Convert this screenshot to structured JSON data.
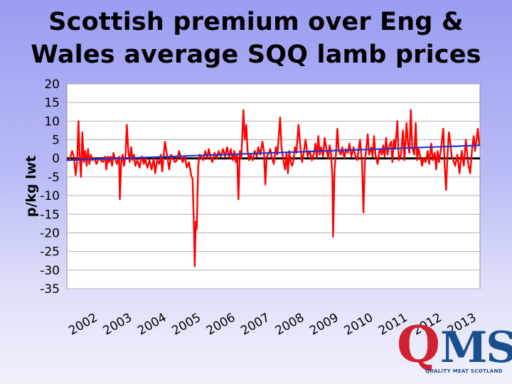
{
  "title_line1": "Scottish premium over Eng &",
  "title_line2": "Wales average SQQ lamb prices",
  "logo": {
    "mark_q": "Q",
    "mark_ms": "MS",
    "tagline": "QUALITY MEAT SCOTLAND"
  },
  "colors": {
    "series": "#ff0000",
    "trend": "#2233cc",
    "zero_line": "#000000",
    "grid": "#b0b0b0",
    "plot_bg": "#ffffff"
  },
  "chart_data": {
    "type": "line",
    "ylabel": "p/kg lwt",
    "ylim": [
      -35,
      20
    ],
    "yticks": [
      20,
      15,
      10,
      5,
      0,
      -5,
      -10,
      -15,
      -20,
      -25,
      -30,
      -35
    ],
    "xlim": [
      2002.0,
      2013.7
    ],
    "xticks": [
      "2002",
      "2003",
      "2004",
      "2005",
      "2006",
      "2007",
      "2008",
      "2009",
      "2010",
      "2011",
      "2012",
      "2013"
    ],
    "grid": true,
    "series": [
      {
        "type": "line",
        "points": [
          [
            2002.0,
            -0.5
          ],
          [
            2002.08,
            -0.3
          ],
          [
            2002.15,
            2.0
          ],
          [
            2002.2,
            0.5
          ],
          [
            2002.25,
            -4.5
          ],
          [
            2002.29,
            -1.0
          ],
          [
            2002.33,
            10.0
          ],
          [
            2002.36,
            1.0
          ],
          [
            2002.4,
            -5.0
          ],
          [
            2002.44,
            7.0
          ],
          [
            2002.48,
            -1.0
          ],
          [
            2002.52,
            2.0
          ],
          [
            2002.56,
            -2.0
          ],
          [
            2002.6,
            2.5
          ],
          [
            2002.64,
            -1.5
          ],
          [
            2002.68,
            1.0
          ],
          [
            2002.72,
            -0.5
          ],
          [
            2002.78,
            0.0
          ],
          [
            2002.84,
            -1.5
          ],
          [
            2002.9,
            0.0
          ],
          [
            2002.96,
            -0.5
          ],
          [
            2003.02,
            -1.0
          ],
          [
            2003.08,
            0.5
          ],
          [
            2003.12,
            -3.0
          ],
          [
            2003.16,
            0.5
          ],
          [
            2003.2,
            -1.0
          ],
          [
            2003.24,
            0.5
          ],
          [
            2003.28,
            -2.0
          ],
          [
            2003.32,
            1.5
          ],
          [
            2003.36,
            0.0
          ],
          [
            2003.42,
            -1.5
          ],
          [
            2003.48,
            0.5
          ],
          [
            2003.5,
            -11.0
          ],
          [
            2003.54,
            -1.0
          ],
          [
            2003.58,
            1.0
          ],
          [
            2003.62,
            -2.0
          ],
          [
            2003.66,
            0.5
          ],
          [
            2003.7,
            9.0
          ],
          [
            2003.74,
            2.0
          ],
          [
            2003.78,
            -1.0
          ],
          [
            2003.82,
            3.0
          ],
          [
            2003.86,
            -0.5
          ],
          [
            2003.9,
            1.0
          ],
          [
            2003.94,
            -2.0
          ],
          [
            2004.0,
            -0.5
          ],
          [
            2004.06,
            -2.5
          ],
          [
            2004.12,
            0.5
          ],
          [
            2004.18,
            -1.5
          ],
          [
            2004.22,
            0.0
          ],
          [
            2004.28,
            -2.5
          ],
          [
            2004.34,
            -0.5
          ],
          [
            2004.4,
            -3.0
          ],
          [
            2004.46,
            0.0
          ],
          [
            2004.5,
            -4.0
          ],
          [
            2004.56,
            -0.5
          ],
          [
            2004.62,
            -1.5
          ],
          [
            2004.66,
            1.0
          ],
          [
            2004.7,
            -3.5
          ],
          [
            2004.74,
            0.5
          ],
          [
            2004.78,
            4.5
          ],
          [
            2004.82,
            2.0
          ],
          [
            2004.86,
            -0.5
          ],
          [
            2004.9,
            -3.0
          ],
          [
            2004.95,
            1.0
          ],
          [
            2005.0,
            0.0
          ],
          [
            2005.06,
            -1.0
          ],
          [
            2005.12,
            -0.5
          ],
          [
            2005.18,
            2.0
          ],
          [
            2005.22,
            0.5
          ],
          [
            2005.28,
            -1.0
          ],
          [
            2005.34,
            0.5
          ],
          [
            2005.4,
            -2.5
          ],
          [
            2005.46,
            -1.0
          ],
          [
            2005.52,
            -4.5
          ],
          [
            2005.56,
            -5.5
          ],
          [
            2005.6,
            -19.0
          ],
          [
            2005.62,
            -29.0
          ],
          [
            2005.65,
            -17.0
          ],
          [
            2005.68,
            -19.0
          ],
          [
            2005.72,
            -2.0
          ],
          [
            2005.76,
            1.0
          ],
          [
            2005.8,
            0.5
          ],
          [
            2005.86,
            -0.5
          ],
          [
            2005.92,
            2.0
          ],
          [
            2005.98,
            0.0
          ],
          [
            2006.02,
            2.5
          ],
          [
            2006.08,
            0.0
          ],
          [
            2006.12,
            -1.0
          ],
          [
            2006.18,
            1.5
          ],
          [
            2006.24,
            0.0
          ],
          [
            2006.3,
            2.0
          ],
          [
            2006.36,
            0.5
          ],
          [
            2006.42,
            2.5
          ],
          [
            2006.48,
            0.5
          ],
          [
            2006.54,
            3.0
          ],
          [
            2006.6,
            0.0
          ],
          [
            2006.64,
            2.5
          ],
          [
            2006.7,
            -0.5
          ],
          [
            2006.74,
            2.0
          ],
          [
            2006.78,
            -1.0
          ],
          [
            2006.82,
            1.0
          ],
          [
            2006.86,
            -11.0
          ],
          [
            2006.9,
            2.0
          ],
          [
            2006.94,
            0.0
          ],
          [
            2007.0,
            13.0
          ],
          [
            2007.04,
            5.0
          ],
          [
            2007.08,
            9.0
          ],
          [
            2007.12,
            2.0
          ],
          [
            2007.16,
            -0.5
          ],
          [
            2007.2,
            1.0
          ],
          [
            2007.26,
            -0.5
          ],
          [
            2007.32,
            2.0
          ],
          [
            2007.38,
            0.5
          ],
          [
            2007.42,
            3.0
          ],
          [
            2007.48,
            1.0
          ],
          [
            2007.54,
            4.5
          ],
          [
            2007.58,
            2.0
          ],
          [
            2007.62,
            -7.0
          ],
          [
            2007.66,
            0.5
          ],
          [
            2007.7,
            1.0
          ],
          [
            2007.76,
            2.5
          ],
          [
            2007.8,
            0.5
          ],
          [
            2007.86,
            -1.5
          ],
          [
            2007.92,
            3.0
          ],
          [
            2007.96,
            1.0
          ],
          [
            2008.0,
            5.5
          ],
          [
            2008.04,
            11.0
          ],
          [
            2008.08,
            3.0
          ],
          [
            2008.12,
            0.0
          ],
          [
            2008.18,
            -3.0
          ],
          [
            2008.22,
            1.5
          ],
          [
            2008.26,
            -4.0
          ],
          [
            2008.3,
            2.0
          ],
          [
            2008.34,
            -1.0
          ],
          [
            2008.38,
            -2.0
          ],
          [
            2008.42,
            -0.5
          ],
          [
            2008.46,
            3.0
          ],
          [
            2008.5,
            1.5
          ],
          [
            2008.56,
            9.0
          ],
          [
            2008.62,
            2.5
          ],
          [
            2008.66,
            -1.0
          ],
          [
            2008.7,
            1.0
          ],
          [
            2008.76,
            5.0
          ],
          [
            2008.82,
            0.5
          ],
          [
            2008.88,
            2.0
          ],
          [
            2008.94,
            -0.5
          ],
          [
            2009.0,
            1.5
          ],
          [
            2009.04,
            4.0
          ],
          [
            2009.08,
            0.0
          ],
          [
            2009.12,
            6.0
          ],
          [
            2009.16,
            1.0
          ],
          [
            2009.2,
            3.0
          ],
          [
            2009.26,
            0.5
          ],
          [
            2009.3,
            5.5
          ],
          [
            2009.36,
            2.0
          ],
          [
            2009.4,
            0.0
          ],
          [
            2009.44,
            3.5
          ],
          [
            2009.48,
            1.5
          ],
          [
            2009.52,
            -5.0
          ],
          [
            2009.54,
            -21.0
          ],
          [
            2009.58,
            -3.0
          ],
          [
            2009.62,
            1.0
          ],
          [
            2009.66,
            8.0
          ],
          [
            2009.7,
            2.0
          ],
          [
            2009.76,
            1.0
          ],
          [
            2009.8,
            3.0
          ],
          [
            2009.86,
            0.0
          ],
          [
            2009.9,
            2.5
          ],
          [
            2009.96,
            1.5
          ],
          [
            2010.0,
            4.0
          ],
          [
            2010.06,
            0.5
          ],
          [
            2010.12,
            3.0
          ],
          [
            2010.16,
            1.0
          ],
          [
            2010.22,
            -0.5
          ],
          [
            2010.3,
            5.0
          ],
          [
            2010.36,
            -1.0
          ],
          [
            2010.4,
            -14.5
          ],
          [
            2010.44,
            -1.0
          ],
          [
            2010.48,
            2.5
          ],
          [
            2010.52,
            6.5
          ],
          [
            2010.56,
            1.0
          ],
          [
            2010.62,
            3.0
          ],
          [
            2010.66,
            0.5
          ],
          [
            2010.7,
            6.0
          ],
          [
            2010.74,
            1.0
          ],
          [
            2010.8,
            -1.5
          ],
          [
            2010.86,
            2.5
          ],
          [
            2010.92,
            1.0
          ],
          [
            2010.96,
            3.5
          ],
          [
            2011.0,
            0.5
          ],
          [
            2011.04,
            5.5
          ],
          [
            2011.08,
            1.0
          ],
          [
            2011.12,
            3.0
          ],
          [
            2011.18,
            4.5
          ],
          [
            2011.22,
            -1.0
          ],
          [
            2011.26,
            5.0
          ],
          [
            2011.3,
            2.5
          ],
          [
            2011.36,
            10.0
          ],
          [
            2011.4,
            -0.5
          ],
          [
            2011.46,
            1.0
          ],
          [
            2011.52,
            7.5
          ],
          [
            2011.56,
            -0.5
          ],
          [
            2011.62,
            9.5
          ],
          [
            2011.66,
            4.0
          ],
          [
            2011.7,
            1.5
          ],
          [
            2011.74,
            13.0
          ],
          [
            2011.78,
            3.0
          ],
          [
            2011.84,
            1.0
          ],
          [
            2011.88,
            9.5
          ],
          [
            2011.92,
            -0.5
          ],
          [
            2011.96,
            2.5
          ],
          [
            2012.0,
            1.0
          ],
          [
            2012.06,
            -2.0
          ],
          [
            2012.1,
            0.0
          ],
          [
            2012.16,
            -1.0
          ],
          [
            2012.22,
            2.0
          ],
          [
            2012.26,
            -1.5
          ],
          [
            2012.32,
            4.0
          ],
          [
            2012.36,
            -0.5
          ],
          [
            2012.42,
            1.5
          ],
          [
            2012.46,
            -3.0
          ],
          [
            2012.5,
            2.0
          ],
          [
            2012.54,
            -1.0
          ],
          [
            2012.6,
            3.0
          ],
          [
            2012.66,
            8.0
          ],
          [
            2012.7,
            -2.0
          ],
          [
            2012.74,
            -8.5
          ],
          [
            2012.78,
            1.0
          ],
          [
            2012.82,
            7.0
          ],
          [
            2012.86,
            4.0
          ],
          [
            2012.9,
            0.5
          ],
          [
            2013.0,
            -2.0
          ],
          [
            2013.06,
            1.0
          ],
          [
            2013.12,
            -4.0
          ],
          [
            2013.18,
            2.0
          ],
          [
            2013.24,
            -2.0
          ],
          [
            2013.3,
            5.0
          ],
          [
            2013.36,
            -1.0
          ],
          [
            2013.42,
            -4.0
          ],
          [
            2013.48,
            3.0
          ],
          [
            2013.52,
            6.0
          ],
          [
            2013.56,
            2.0
          ],
          [
            2013.6,
            5.0
          ],
          [
            2013.64,
            8.0
          ],
          [
            2013.68,
            3.5
          ]
        ]
      },
      {
        "type": "trend",
        "points": [
          [
            2002.0,
            -0.5
          ],
          [
            2013.7,
            3.5
          ]
        ]
      }
    ]
  }
}
